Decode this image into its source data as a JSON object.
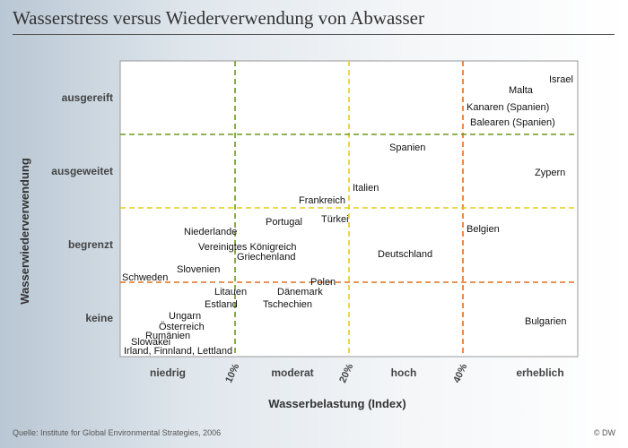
{
  "title": "Wasserstress versus Wiederverwendung von Abwasser",
  "source": "Quelle: Institute for Global Environmental Strategies, 2006",
  "credit": "© DW",
  "chart_data": {
    "type": "scatter",
    "xlabel": "Wasserbelastung (Index)",
    "ylabel": "Wasserwiederverwendung",
    "x_categories": [
      "niedrig",
      "moderat",
      "hoch",
      "erheblich"
    ],
    "x_thresholds": [
      "10%",
      "20%",
      "40%"
    ],
    "y_categories": [
      "ausgereift",
      "ausgeweitet",
      "begrenzt",
      "keine"
    ],
    "colors": {
      "line_10": "#6a9a1f",
      "line_20": "#e6cc1a",
      "line_40": "#e07020",
      "row_ausgereift": "#6a9a1f",
      "row_ausgeweitet": "#e6cc1a",
      "row_begrenzt": "#e07020",
      "plot_bg": "#ffffff",
      "plot_border": "#999999"
    },
    "points": [
      {
        "label": "Israel",
        "x": "erheblich",
        "y": "ausgereift"
      },
      {
        "label": "Malta",
        "x": "erheblich",
        "y": "ausgereift"
      },
      {
        "label": "Kanaren (Spanien)",
        "x": "erheblich",
        "y": "ausgereift"
      },
      {
        "label": "Balearen (Spanien)",
        "x": "erheblich",
        "y": "ausgereift"
      },
      {
        "label": "Spanien",
        "x": "hoch",
        "y": "ausgeweitet"
      },
      {
        "label": "Zypern",
        "x": "erheblich",
        "y": "ausgeweitet"
      },
      {
        "label": "Italien",
        "x": "hoch",
        "y": "ausgeweitet"
      },
      {
        "label": "Frankreich",
        "x": "moderat",
        "y": "ausgeweitet"
      },
      {
        "label": "Niederlande",
        "x": "niedrig",
        "y": "begrenzt"
      },
      {
        "label": "Portugal",
        "x": "moderat",
        "y": "begrenzt"
      },
      {
        "label": "Türkei",
        "x": "moderat",
        "y": "begrenzt"
      },
      {
        "label": "Belgien",
        "x": "erheblich",
        "y": "begrenzt"
      },
      {
        "label": "Vereinigtes Königreich",
        "x": "niedrig",
        "y": "begrenzt"
      },
      {
        "label": "Griechenland",
        "x": "moderat",
        "y": "begrenzt"
      },
      {
        "label": "Deutschland",
        "x": "hoch",
        "y": "begrenzt"
      },
      {
        "label": "Slovenien",
        "x": "niedrig",
        "y": "begrenzt"
      },
      {
        "label": "Schweden",
        "x": "niedrig",
        "y": "begrenzt"
      },
      {
        "label": "Polen",
        "x": "moderat",
        "y": "keine"
      },
      {
        "label": "Litauen",
        "x": "niedrig",
        "y": "keine"
      },
      {
        "label": "Dänemark",
        "x": "moderat",
        "y": "keine"
      },
      {
        "label": "Estland",
        "x": "niedrig",
        "y": "keine"
      },
      {
        "label": "Tschechien",
        "x": "moderat",
        "y": "keine"
      },
      {
        "label": "Ungarn",
        "x": "niedrig",
        "y": "keine"
      },
      {
        "label": "Österreich",
        "x": "niedrig",
        "y": "keine"
      },
      {
        "label": "Rumänien",
        "x": "niedrig",
        "y": "keine"
      },
      {
        "label": "Slowakei",
        "x": "niedrig",
        "y": "keine"
      },
      {
        "label": "Irland, Finnland, Lettland",
        "x": "niedrig",
        "y": "keine"
      },
      {
        "label": "Bulgarien",
        "x": "erheblich",
        "y": "keine"
      }
    ]
  }
}
